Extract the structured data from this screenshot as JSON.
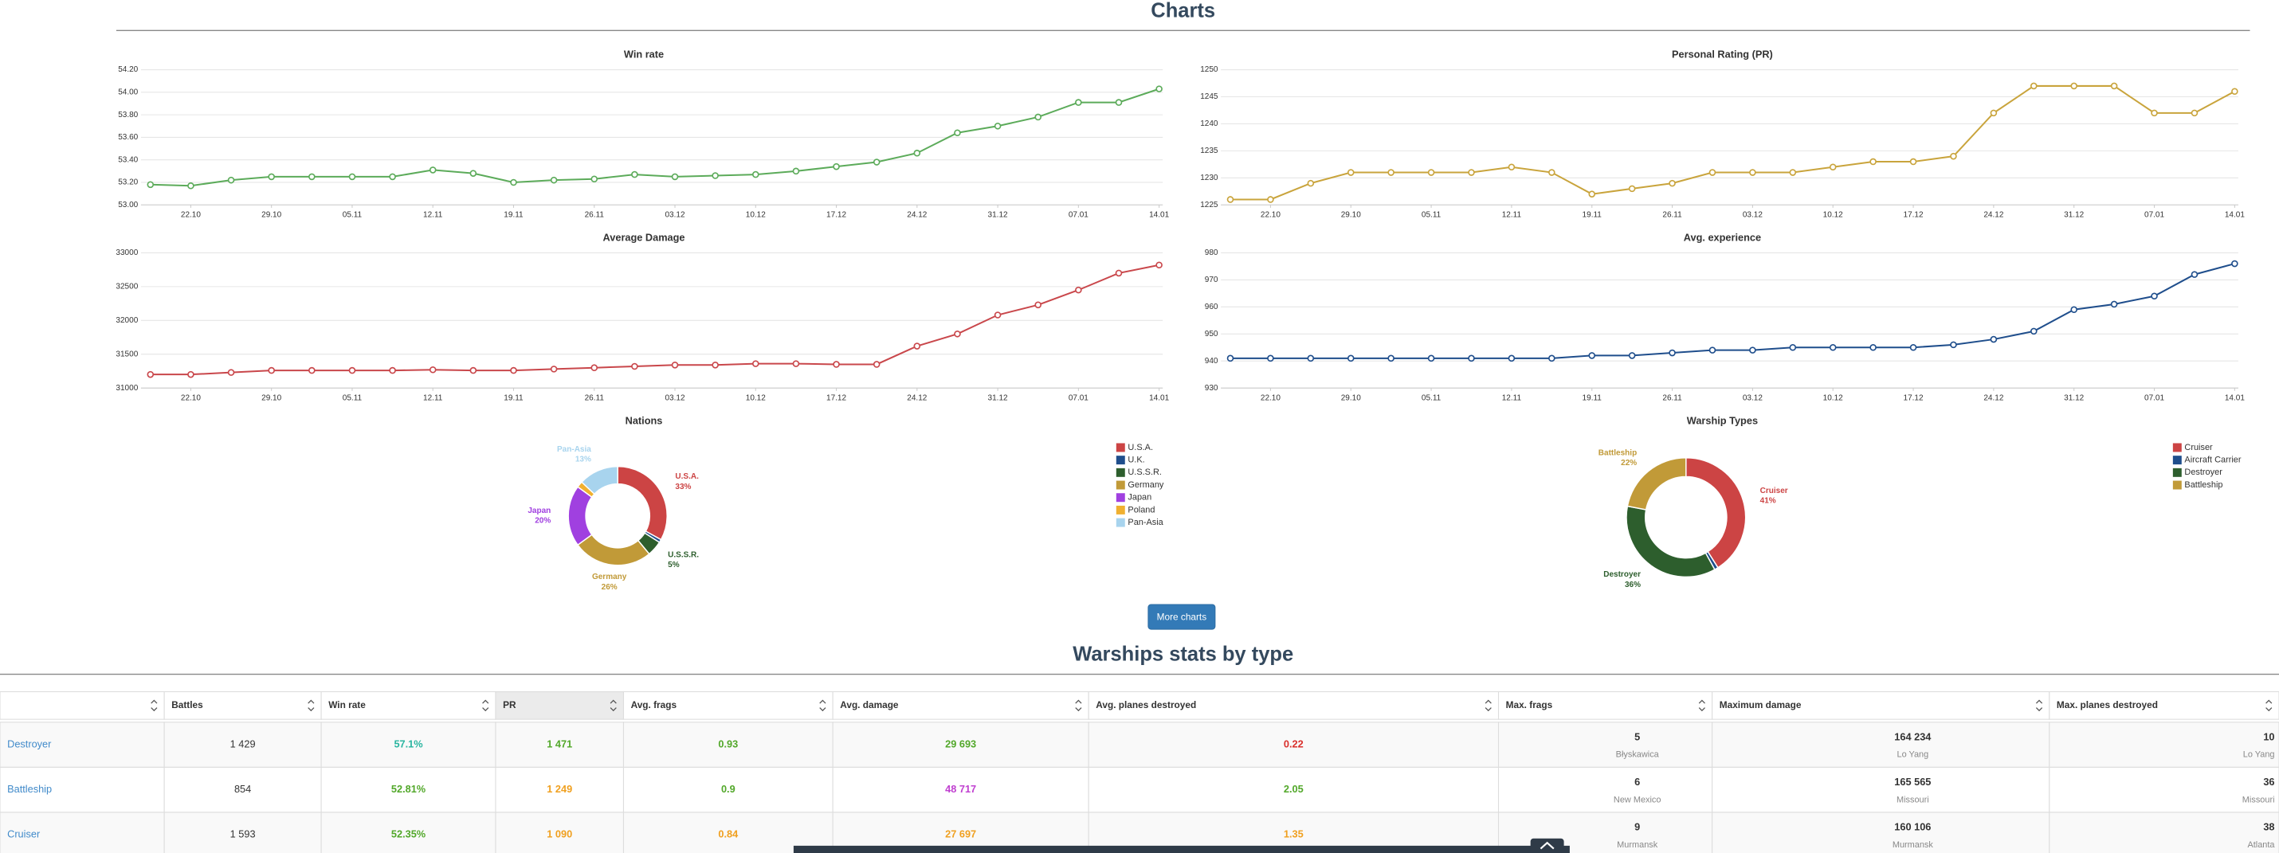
{
  "page": {
    "title": "Charts",
    "more_button": "More charts",
    "table_title": "Warships stats by type"
  },
  "chart_data": [
    {
      "type": "line",
      "title": "Win rate",
      "color": "#5cab5a",
      "grid": true,
      "categories": [
        null,
        "22.10",
        null,
        "29.10",
        null,
        "05.11",
        null,
        "12.11",
        null,
        "19.11",
        null,
        "26.11",
        null,
        "03.12",
        null,
        "10.12",
        null,
        "17.12",
        null,
        "24.12",
        null,
        "31.12",
        null,
        "07.01",
        null,
        "14.01"
      ],
      "values": [
        53.18,
        53.17,
        53.22,
        53.25,
        53.25,
        53.25,
        53.25,
        53.31,
        53.28,
        53.2,
        53.22,
        53.23,
        53.27,
        53.25,
        53.26,
        53.27,
        53.3,
        53.34,
        53.38,
        53.46,
        53.64,
        53.7,
        53.78,
        53.91,
        53.91,
        54.03
      ],
      "ylim": [
        53,
        54.2
      ],
      "yticks": [
        {
          "value": 53,
          "label": "53.00"
        },
        {
          "value": 53.2,
          "label": "53.20"
        },
        {
          "value": 53.4,
          "label": "53.40"
        },
        {
          "value": 53.6,
          "label": "53.60"
        },
        {
          "value": 53.8,
          "label": "53.80"
        },
        {
          "value": 54,
          "label": "54.00"
        },
        {
          "value": 54.2,
          "label": "54.20"
        }
      ]
    },
    {
      "type": "line",
      "title": "Personal Rating (PR)",
      "color": "#c9a43c",
      "grid": true,
      "categories": [
        null,
        "22.10",
        null,
        "29.10",
        null,
        "05.11",
        null,
        "12.11",
        null,
        "19.11",
        null,
        "26.11",
        null,
        "03.12",
        null,
        "10.12",
        null,
        "17.12",
        null,
        "24.12",
        null,
        "31.12",
        null,
        "07.01",
        null,
        "14.01"
      ],
      "values": [
        1226,
        1226,
        1229,
        1231,
        1231,
        1231,
        1231,
        1232,
        1231,
        1227,
        1228,
        1229,
        1231,
        1231,
        1231,
        1232,
        1233,
        1233,
        1234,
        1242,
        1247,
        1247,
        1247,
        1242,
        1242,
        1246
      ],
      "ylim": [
        1225,
        1250
      ],
      "yticks": [
        1225,
        1230,
        1235,
        1240,
        1245,
        1250
      ]
    },
    {
      "type": "line",
      "title": "Average Damage",
      "color": "#c9474b",
      "grid": true,
      "categories": [
        null,
        "22.10",
        null,
        "29.10",
        null,
        "05.11",
        null,
        "12.11",
        null,
        "19.11",
        null,
        "26.11",
        null,
        "03.12",
        null,
        "10.12",
        null,
        "17.12",
        null,
        "24.12",
        null,
        "31.12",
        null,
        "07.01",
        null,
        "14.01"
      ],
      "values": [
        31200,
        31200,
        31230,
        31260,
        31260,
        31260,
        31260,
        31270,
        31260,
        31260,
        31280,
        31300,
        31320,
        31340,
        31340,
        31360,
        31360,
        31350,
        31350,
        31620,
        31800,
        32080,
        32230,
        32450,
        32700,
        32820
      ],
      "ylim": [
        31000,
        33000
      ],
      "yticks": [
        31000,
        31500,
        32000,
        32500,
        33000
      ]
    },
    {
      "type": "line",
      "title": "Avg. experience",
      "color": "#1f4e8c",
      "grid": true,
      "categories": [
        null,
        "22.10",
        null,
        "29.10",
        null,
        "05.11",
        null,
        "12.11",
        null,
        "19.11",
        null,
        "26.11",
        null,
        "03.12",
        null,
        "10.12",
        null,
        "17.12",
        null,
        "24.12",
        null,
        "31.12",
        null,
        "07.01",
        null,
        "14.01"
      ],
      "values": [
        941,
        941,
        941,
        941,
        941,
        941,
        941,
        941,
        941,
        942,
        942,
        943,
        944,
        944,
        945,
        945,
        945,
        945,
        946,
        948,
        951,
        959,
        961,
        964,
        972,
        976
      ],
      "ylim": [
        930,
        980
      ],
      "yticks": [
        930,
        940,
        950,
        960,
        970,
        980
      ]
    },
    {
      "type": "donut",
      "title": "Nations",
      "categories": [
        "U.S.A.",
        "U.K.",
        "U.S.S.R.",
        "Germany",
        "Japan",
        "Poland",
        "Pan-Asia"
      ],
      "values": [
        33,
        1,
        5,
        26,
        20,
        2,
        13
      ],
      "value_labels": [
        "33%",
        null,
        "5%",
        "26%",
        "20%",
        null,
        "13%"
      ],
      "colors": [
        "#cc4444",
        "#1f4e8c",
        "#2d5e2d",
        "#c19a38",
        "#a040e0",
        "#f0b030",
        "#a8d4ee"
      ]
    },
    {
      "type": "donut",
      "title": "Warship Types",
      "categories": [
        "Cruiser",
        "Aircraft Carrier",
        "Destroyer",
        "Battleship"
      ],
      "values": [
        41,
        1,
        36,
        22
      ],
      "value_labels": [
        "41%",
        null,
        "36%",
        "22%"
      ],
      "colors": [
        "#cc4444",
        "#1f4e8c",
        "#2d5e2d",
        "#c19a38"
      ]
    }
  ],
  "table": {
    "columns": [
      "Battles",
      "Win rate",
      "PR",
      "Avg. frags",
      "Avg. damage",
      "Avg. planes destroyed",
      "Max. frags",
      "Maximum damage",
      "Max. planes destroyed"
    ],
    "rows": [
      [
        "Destroyer",
        "1 429",
        "57.1%",
        "1 471",
        "0.93",
        "29 693",
        "0.22",
        {
          "value": "5",
          "ship": "Błyskawica"
        },
        {
          "value": "164 234",
          "ship": "Lo Yang"
        },
        {
          "value": "10",
          "ship": "Lo Yang"
        }
      ],
      [
        "Battleship",
        "854",
        "52.81%",
        "1 249",
        "0.9",
        "48 717",
        "2.05",
        {
          "value": "6",
          "ship": "New Mexico"
        },
        {
          "value": "165 565",
          "ship": "Missouri"
        },
        {
          "value": "36",
          "ship": "Missouri"
        }
      ],
      [
        "Cruiser",
        "1 593",
        "52.35%",
        "1 090",
        "0.84",
        "27 697",
        "1.35",
        {
          "value": "9",
          "ship": "Murmansk"
        },
        {
          "value": "160 106",
          "ship": "Murmansk"
        },
        {
          "value": "38",
          "ship": "Atlanta"
        }
      ]
    ]
  }
}
